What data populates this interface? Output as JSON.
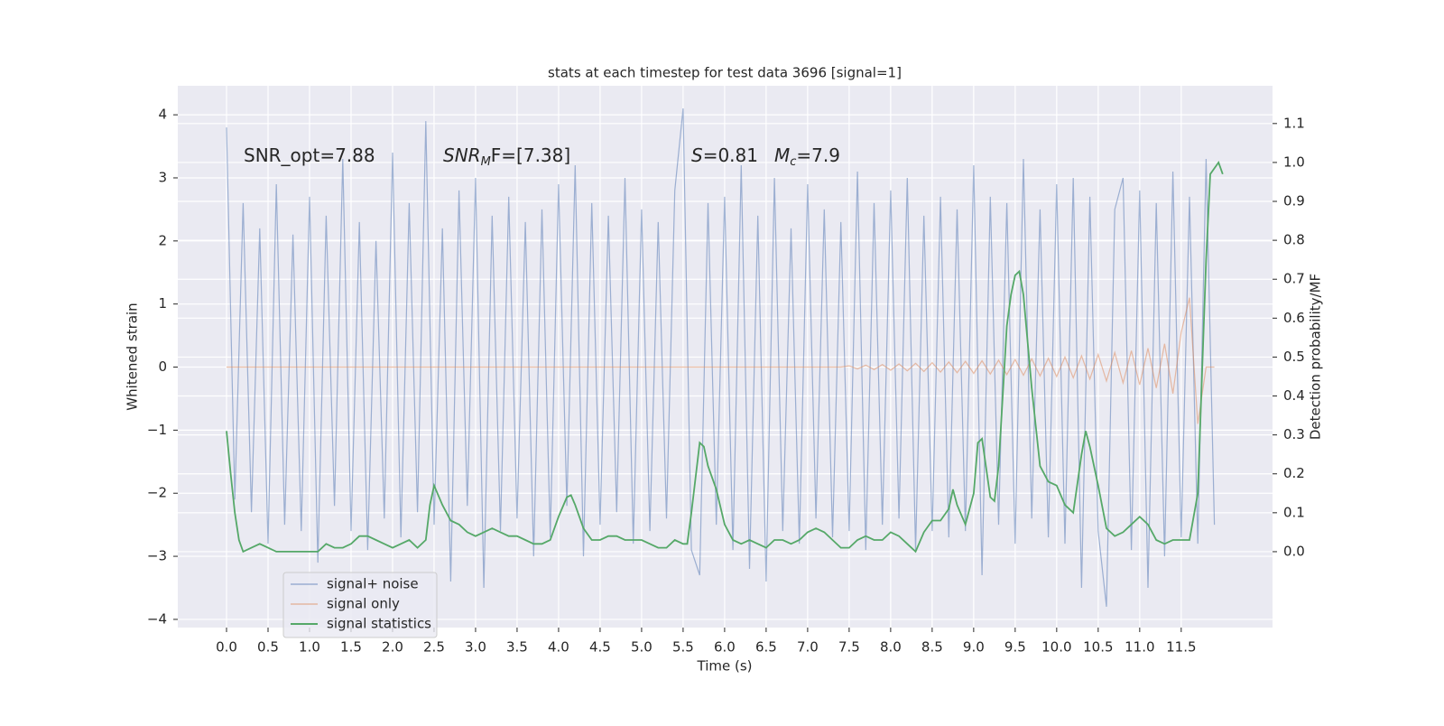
{
  "chart_data": {
    "type": "line",
    "title": "stats at each timestep for test data 3696 [signal=1]",
    "xlabel": "Time (s)",
    "ylabel": "Whitened strain",
    "y2label": "Detection probability/MF",
    "annotations": [
      [
        "SNR_opt=7.88"
      ],
      [
        "SNR",
        "M",
        "F=[7.38]"
      ],
      [
        "S",
        "=0.81"
      ],
      [
        "M",
        "c",
        "=7.9"
      ]
    ],
    "xlim": [
      -0.587,
      12.6
    ],
    "xticks": [
      {
        "value": 0,
        "label": "0.0"
      },
      0.5,
      {
        "value": 1,
        "label": "1.0"
      },
      1.5,
      {
        "value": 2,
        "label": "2.0"
      },
      2.5,
      {
        "value": 3,
        "label": "3.0"
      },
      3.5,
      {
        "value": 4,
        "label": "4.0"
      },
      4.5,
      {
        "value": 5,
        "label": "5.0"
      },
      5.5,
      {
        "value": 6,
        "label": "6.0"
      },
      6.5,
      {
        "value": 7,
        "label": "7.0"
      },
      7.5,
      {
        "value": 8,
        "label": "8.0"
      },
      8.5,
      {
        "value": 9,
        "label": "9.0"
      },
      9.5,
      {
        "value": 10,
        "label": "10.0"
      },
      10.5,
      {
        "value": 11,
        "label": "11.0"
      },
      11.5
    ],
    "ylim": [
      -4.13,
      4.46
    ],
    "yticks": [
      {
        "value": -4,
        "label": "−4"
      },
      {
        "value": -3,
        "label": "−3"
      },
      {
        "value": -2,
        "label": "−2"
      },
      {
        "value": -1,
        "label": "−1"
      },
      0,
      1,
      2,
      3,
      4
    ],
    "y2lim": [
      -0.195,
      1.197
    ],
    "y2ticks": [
      {
        "value": 0,
        "label": "0.0"
      },
      0.1,
      0.2,
      0.3,
      0.4,
      0.5,
      0.6,
      0.7,
      0.8,
      0.9,
      {
        "value": 1,
        "label": "1.0"
      },
      1.1
    ],
    "grid": true,
    "legend": "lower left",
    "series": [
      {
        "name": "signal+ noise",
        "color": "#4c72b0",
        "x": [
          0,
          0.1,
          0.2,
          0.3,
          0.4,
          0.5,
          0.6,
          0.7,
          0.8,
          0.9,
          1,
          1.1,
          1.2,
          1.3,
          1.4,
          1.5,
          1.6,
          1.7,
          1.8,
          1.9,
          2,
          2.1,
          2.2,
          2.3,
          2.4,
          2.5,
          2.6,
          2.7,
          2.8,
          2.9,
          3,
          3.1,
          3.2,
          3.3,
          3.4,
          3.5,
          3.6,
          3.7,
          3.8,
          3.9,
          4,
          4.1,
          4.2,
          4.3,
          4.4,
          4.5,
          4.6,
          4.7,
          4.8,
          4.9,
          5,
          5.1,
          5.2,
          5.3,
          5.4,
          5.5,
          5.6,
          5.7,
          5.8,
          5.9,
          6,
          6.1,
          6.2,
          6.3,
          6.4,
          6.5,
          6.6,
          6.7,
          6.8,
          6.9,
          7,
          7.1,
          7.2,
          7.3,
          7.4,
          7.5,
          7.6,
          7.7,
          7.8,
          7.9,
          8,
          8.1,
          8.2,
          8.3,
          8.4,
          8.5,
          8.6,
          8.7,
          8.8,
          8.9,
          9,
          9.1,
          9.2,
          9.3,
          9.4,
          9.5,
          9.6,
          9.7,
          9.8,
          9.9,
          10,
          10.1,
          10.2,
          10.3,
          10.4,
          10.5,
          10.6,
          10.7,
          10.8,
          10.9,
          11,
          11.1,
          11.2,
          11.3,
          11.4,
          11.5,
          11.6,
          11.7,
          11.8,
          11.9
        ],
        "values": [
          3.8,
          -2.1,
          2.6,
          -2.3,
          2.2,
          -2.8,
          2.9,
          -2.5,
          2.1,
          -2.6,
          2.7,
          -3.1,
          2.4,
          -2.2,
          3.3,
          -2.6,
          2.3,
          -2.9,
          2.0,
          -2.4,
          3.4,
          -2.7,
          2.6,
          -2.3,
          3.9,
          -2.5,
          2.2,
          -3.4,
          2.8,
          -2.2,
          3.0,
          -3.5,
          2.4,
          -2.6,
          2.7,
          -2.4,
          2.3,
          -3.0,
          2.5,
          -2.7,
          2.9,
          -2.2,
          3.2,
          -3.0,
          2.6,
          -2.5,
          2.4,
          -2.3,
          3.0,
          -2.8,
          2.5,
          -2.6,
          2.3,
          -2.4,
          2.8,
          4.1,
          -2.9,
          -3.3,
          2.6,
          -2.5,
          2.7,
          -2.9,
          3.2,
          -3.2,
          2.4,
          -3.4,
          3.0,
          -2.6,
          2.2,
          -2.8,
          2.9,
          -2.4,
          2.5,
          -2.7,
          2.3,
          -2.6,
          3.1,
          -2.9,
          2.6,
          -2.5,
          2.8,
          -2.4,
          3.0,
          -2.9,
          2.4,
          -2.6,
          2.7,
          -2.7,
          2.5,
          -2.6,
          3.2,
          -3.3,
          2.7,
          -2.5,
          2.6,
          -2.8,
          3.3,
          -2.4,
          2.5,
          -2.7,
          2.9,
          -2.8,
          3.0,
          -3.5,
          2.7,
          -2.6,
          -3.8,
          2.5,
          3.0,
          -2.9,
          2.8,
          -3.5,
          2.6,
          -3.0,
          3.1,
          -2.7,
          2.7,
          -2.8,
          3.3,
          -2.5
        ]
      },
      {
        "name": "signal only",
        "color": "#dd8452",
        "x": [
          0,
          7.4,
          7.5,
          7.6,
          7.7,
          7.8,
          7.9,
          8,
          8.1,
          8.2,
          8.3,
          8.4,
          8.5,
          8.6,
          8.7,
          8.8,
          8.9,
          9,
          9.1,
          9.2,
          9.3,
          9.4,
          9.5,
          9.6,
          9.7,
          9.8,
          9.9,
          10,
          10.1,
          10.2,
          10.3,
          10.4,
          10.5,
          10.6,
          10.7,
          10.8,
          10.9,
          11,
          11.1,
          11.2,
          11.3,
          11.4,
          11.5,
          11.6,
          11.7,
          11.8,
          11.9
        ],
        "values": [
          0,
          0,
          0.02,
          -0.03,
          0.03,
          -0.04,
          0.04,
          -0.05,
          0.05,
          -0.06,
          0.06,
          -0.07,
          0.07,
          -0.08,
          0.08,
          -0.09,
          0.09,
          -0.1,
          0.1,
          -0.11,
          0.11,
          -0.12,
          0.12,
          -0.13,
          0.13,
          -0.14,
          0.14,
          -0.15,
          0.16,
          -0.17,
          0.18,
          -0.19,
          0.2,
          -0.22,
          0.23,
          -0.25,
          0.26,
          -0.28,
          0.3,
          -0.33,
          0.37,
          -0.42,
          0.55,
          1.1,
          -0.9,
          0,
          0
        ]
      },
      {
        "name": "signal statistics",
        "color": "#55a868",
        "axis": "y2",
        "x": [
          0,
          0.05,
          0.1,
          0.15,
          0.2,
          0.3,
          0.4,
          0.5,
          0.6,
          0.8,
          1,
          1.1,
          1.2,
          1.3,
          1.4,
          1.5,
          1.6,
          1.7,
          1.8,
          1.9,
          2,
          2.1,
          2.2,
          2.3,
          2.4,
          2.45,
          2.5,
          2.6,
          2.7,
          2.8,
          2.9,
          3,
          3.1,
          3.2,
          3.3,
          3.4,
          3.5,
          3.6,
          3.7,
          3.8,
          3.9,
          4,
          4.1,
          4.15,
          4.2,
          4.3,
          4.4,
          4.5,
          4.6,
          4.7,
          4.8,
          4.9,
          5,
          5.1,
          5.2,
          5.3,
          5.4,
          5.5,
          5.55,
          5.6,
          5.7,
          5.75,
          5.8,
          5.9,
          6,
          6.1,
          6.2,
          6.3,
          6.4,
          6.5,
          6.6,
          6.7,
          6.8,
          6.9,
          7,
          7.1,
          7.2,
          7.3,
          7.4,
          7.5,
          7.6,
          7.7,
          7.8,
          7.9,
          8,
          8.1,
          8.2,
          8.3,
          8.4,
          8.5,
          8.6,
          8.7,
          8.75,
          8.8,
          8.9,
          9,
          9.05,
          9.1,
          9.2,
          9.25,
          9.3,
          9.4,
          9.45,
          9.5,
          9.55,
          9.6,
          9.7,
          9.8,
          9.9,
          10,
          10.1,
          10.2,
          10.3,
          10.35,
          10.4,
          10.5,
          10.6,
          10.7,
          10.8,
          10.9,
          11,
          11.1,
          11.2,
          11.3,
          11.4,
          11.5,
          11.6,
          11.7,
          11.8,
          11.85,
          11.95,
          12
        ],
        "values": [
          0.31,
          0.2,
          0.1,
          0.03,
          0,
          0.01,
          0.02,
          0.01,
          0,
          0,
          0,
          0,
          0.02,
          0.01,
          0.01,
          0.02,
          0.04,
          0.04,
          0.03,
          0.02,
          0.01,
          0.02,
          0.03,
          0.01,
          0.03,
          0.12,
          0.17,
          0.12,
          0.08,
          0.07,
          0.05,
          0.04,
          0.05,
          0.06,
          0.05,
          0.04,
          0.04,
          0.03,
          0.02,
          0.02,
          0.03,
          0.09,
          0.14,
          0.145,
          0.12,
          0.06,
          0.03,
          0.03,
          0.04,
          0.04,
          0.03,
          0.03,
          0.03,
          0.02,
          0.01,
          0.01,
          0.03,
          0.02,
          0.02,
          0.1,
          0.28,
          0.27,
          0.22,
          0.16,
          0.07,
          0.03,
          0.02,
          0.03,
          0.02,
          0.01,
          0.03,
          0.03,
          0.02,
          0.03,
          0.05,
          0.06,
          0.05,
          0.03,
          0.01,
          0.01,
          0.03,
          0.04,
          0.03,
          0.03,
          0.05,
          0.04,
          0.02,
          0,
          0.05,
          0.08,
          0.08,
          0.11,
          0.16,
          0.12,
          0.07,
          0.15,
          0.28,
          0.29,
          0.14,
          0.13,
          0.22,
          0.58,
          0.66,
          0.71,
          0.72,
          0.66,
          0.42,
          0.22,
          0.18,
          0.17,
          0.12,
          0.1,
          0.25,
          0.31,
          0.27,
          0.17,
          0.06,
          0.04,
          0.05,
          0.07,
          0.09,
          0.07,
          0.03,
          0.02,
          0.03,
          0.03,
          0.03,
          0.15,
          0.75,
          0.97,
          1.0,
          0.97
        ]
      }
    ]
  }
}
